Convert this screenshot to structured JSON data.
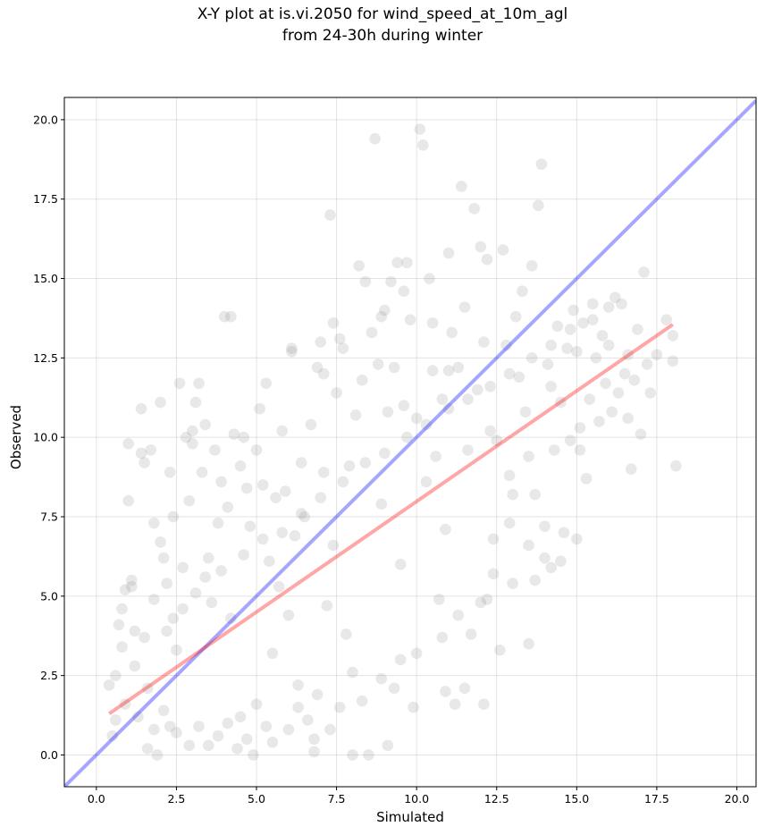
{
  "chart_data": {
    "type": "scatter",
    "title_line1": "X-Y plot at is.vi.2050 for wind_speed_at_10m_agl",
    "title_line2": "from 24-30h during winter",
    "xlabel": "Simulated",
    "ylabel": "Observed",
    "xlim": [
      -1.0,
      20.6
    ],
    "ylim": [
      -1.0,
      20.7
    ],
    "x_ticks": [
      0.0,
      2.5,
      5.0,
      7.5,
      10.0,
      12.5,
      15.0,
      17.5,
      20.0
    ],
    "y_ticks": [
      0.0,
      2.5,
      5.0,
      7.5,
      10.0,
      12.5,
      15.0,
      17.5,
      20.0
    ],
    "x_tick_labels": [
      "0.0",
      "2.5",
      "5.0",
      "7.5",
      "10.0",
      "12.5",
      "15.0",
      "17.5",
      "20.0"
    ],
    "y_tick_labels": [
      "0.0",
      "2.5",
      "5.0",
      "7.5",
      "10.0",
      "12.5",
      "15.0",
      "17.5",
      "20.0"
    ],
    "grid": true,
    "point_color": "#808080",
    "point_opacity": 0.18,
    "identity_line": {
      "color": "#0000ff",
      "from": [
        -1.0,
        -1.0
      ],
      "to": [
        20.6,
        20.6
      ]
    },
    "fit_line": {
      "color": "#ff0000",
      "from": [
        0.4,
        1.3
      ],
      "to": [
        18.0,
        13.55
      ]
    },
    "points": [
      [
        0.4,
        2.2
      ],
      [
        0.5,
        0.6
      ],
      [
        0.6,
        2.5
      ],
      [
        0.7,
        4.1
      ],
      [
        0.8,
        3.4
      ],
      [
        0.9,
        5.2
      ],
      [
        1.0,
        9.8
      ],
      [
        1.0,
        8.0
      ],
      [
        1.1,
        5.3
      ],
      [
        1.2,
        3.9
      ],
      [
        1.3,
        1.2
      ],
      [
        1.4,
        9.5
      ],
      [
        1.5,
        9.2
      ],
      [
        1.6,
        2.1
      ],
      [
        1.7,
        9.6
      ],
      [
        1.8,
        7.3
      ],
      [
        1.9,
        0.0
      ],
      [
        2.0,
        6.7
      ],
      [
        2.1,
        6.2
      ],
      [
        2.2,
        5.4
      ],
      [
        2.3,
        8.9
      ],
      [
        2.4,
        7.5
      ],
      [
        2.5,
        3.3
      ],
      [
        2.6,
        11.7
      ],
      [
        2.7,
        5.9
      ],
      [
        2.8,
        10.0
      ],
      [
        2.9,
        8.0
      ],
      [
        3.0,
        10.2
      ],
      [
        3.1,
        11.1
      ],
      [
        3.2,
        11.7
      ],
      [
        3.3,
        8.9
      ],
      [
        3.4,
        10.4
      ],
      [
        3.5,
        6.2
      ],
      [
        3.6,
        4.8
      ],
      [
        3.7,
        9.6
      ],
      [
        3.8,
        7.3
      ],
      [
        3.9,
        8.6
      ],
      [
        4.0,
        13.8
      ],
      [
        4.1,
        7.8
      ],
      [
        4.2,
        4.3
      ],
      [
        4.3,
        10.1
      ],
      [
        4.4,
        0.2
      ],
      [
        4.5,
        9.1
      ],
      [
        4.6,
        10.0
      ],
      [
        4.7,
        8.4
      ],
      [
        4.8,
        7.2
      ],
      [
        4.9,
        0.0
      ],
      [
        5.0,
        9.6
      ],
      [
        5.1,
        10.9
      ],
      [
        5.2,
        8.5
      ],
      [
        5.3,
        11.7
      ],
      [
        5.4,
        6.1
      ],
      [
        5.5,
        3.2
      ],
      [
        5.6,
        8.1
      ],
      [
        5.7,
        5.3
      ],
      [
        5.8,
        10.2
      ],
      [
        5.9,
        8.3
      ],
      [
        6.0,
        4.4
      ],
      [
        6.1,
        12.8
      ],
      [
        6.2,
        6.9
      ],
      [
        6.3,
        2.2
      ],
      [
        6.4,
        9.2
      ],
      [
        6.5,
        7.5
      ],
      [
        6.6,
        1.1
      ],
      [
        6.7,
        10.4
      ],
      [
        6.8,
        0.5
      ],
      [
        6.9,
        12.2
      ],
      [
        7.0,
        13.0
      ],
      [
        7.1,
        8.9
      ],
      [
        7.2,
        4.7
      ],
      [
        7.3,
        17.0
      ],
      [
        7.4,
        6.6
      ],
      [
        7.5,
        11.4
      ],
      [
        7.6,
        13.1
      ],
      [
        7.7,
        12.8
      ],
      [
        7.8,
        3.8
      ],
      [
        7.9,
        9.1
      ],
      [
        8.0,
        2.6
      ],
      [
        8.1,
        10.7
      ],
      [
        8.2,
        15.4
      ],
      [
        8.3,
        11.8
      ],
      [
        8.4,
        14.9
      ],
      [
        8.5,
        0.0
      ],
      [
        8.6,
        13.3
      ],
      [
        8.7,
        19.4
      ],
      [
        8.8,
        12.3
      ],
      [
        8.9,
        7.9
      ],
      [
        9.0,
        14.0
      ],
      [
        9.1,
        10.8
      ],
      [
        9.2,
        14.9
      ],
      [
        9.3,
        12.2
      ],
      [
        9.4,
        15.5
      ],
      [
        9.5,
        6.0
      ],
      [
        9.6,
        11.0
      ],
      [
        9.7,
        15.5
      ],
      [
        9.8,
        13.7
      ],
      [
        9.9,
        1.5
      ],
      [
        10.0,
        10.6
      ],
      [
        10.1,
        19.7
      ],
      [
        10.2,
        19.2
      ],
      [
        10.3,
        8.6
      ],
      [
        10.4,
        15.0
      ],
      [
        10.5,
        12.1
      ],
      [
        10.6,
        9.4
      ],
      [
        10.7,
        4.9
      ],
      [
        10.8,
        11.2
      ],
      [
        10.9,
        7.1
      ],
      [
        11.0,
        15.8
      ],
      [
        11.1,
        13.3
      ],
      [
        11.2,
        1.6
      ],
      [
        11.3,
        12.2
      ],
      [
        11.4,
        17.9
      ],
      [
        11.5,
        14.1
      ],
      [
        11.6,
        9.6
      ],
      [
        11.7,
        3.8
      ],
      [
        11.8,
        17.2
      ],
      [
        11.9,
        11.5
      ],
      [
        12.0,
        16.0
      ],
      [
        12.1,
        1.6
      ],
      [
        12.2,
        15.6
      ],
      [
        12.3,
        10.2
      ],
      [
        12.4,
        6.8
      ],
      [
        12.5,
        9.9
      ],
      [
        12.6,
        3.3
      ],
      [
        12.7,
        15.9
      ],
      [
        12.8,
        12.9
      ],
      [
        12.9,
        7.3
      ],
      [
        13.0,
        8.2
      ],
      [
        13.1,
        13.8
      ],
      [
        13.2,
        11.9
      ],
      [
        13.3,
        14.6
      ],
      [
        13.4,
        10.8
      ],
      [
        13.5,
        6.6
      ],
      [
        13.6,
        15.4
      ],
      [
        13.7,
        8.2
      ],
      [
        13.8,
        17.3
      ],
      [
        13.9,
        18.6
      ],
      [
        14.0,
        7.2
      ],
      [
        14.1,
        12.3
      ],
      [
        14.2,
        5.9
      ],
      [
        14.3,
        9.6
      ],
      [
        14.4,
        13.5
      ],
      [
        14.5,
        11.1
      ],
      [
        14.6,
        7.0
      ],
      [
        14.7,
        12.8
      ],
      [
        14.8,
        9.9
      ],
      [
        14.9,
        14.0
      ],
      [
        15.0,
        12.7
      ],
      [
        15.1,
        9.6
      ],
      [
        15.2,
        13.6
      ],
      [
        15.3,
        8.7
      ],
      [
        15.4,
        11.2
      ],
      [
        15.5,
        14.2
      ],
      [
        15.6,
        12.5
      ],
      [
        15.7,
        10.5
      ],
      [
        15.8,
        13.2
      ],
      [
        15.9,
        11.7
      ],
      [
        16.0,
        12.9
      ],
      [
        16.1,
        10.8
      ],
      [
        16.2,
        14.4
      ],
      [
        16.3,
        11.4
      ],
      [
        16.4,
        14.2
      ],
      [
        16.5,
        12.0
      ],
      [
        16.6,
        10.6
      ],
      [
        16.7,
        9.0
      ],
      [
        16.8,
        11.8
      ],
      [
        16.9,
        13.4
      ],
      [
        17.0,
        10.1
      ],
      [
        17.1,
        15.2
      ],
      [
        17.2,
        12.3
      ],
      [
        17.3,
        11.4
      ],
      [
        17.5,
        12.6
      ],
      [
        17.8,
        13.7
      ],
      [
        18.0,
        12.4
      ],
      [
        18.0,
        13.2
      ],
      [
        18.1,
        9.1
      ],
      [
        5.5,
        0.4
      ],
      [
        6.8,
        0.1
      ],
      [
        9.1,
        0.3
      ],
      [
        3.5,
        0.3
      ],
      [
        7.3,
        0.8
      ],
      [
        8.0,
        0.0
      ],
      [
        4.5,
        1.2
      ],
      [
        10.9,
        2.0
      ],
      [
        11.5,
        2.1
      ],
      [
        9.5,
        3.0
      ],
      [
        5.0,
        1.6
      ],
      [
        12.0,
        4.8
      ],
      [
        13.5,
        3.5
      ],
      [
        12.4,
        5.7
      ],
      [
        14.5,
        6.1
      ],
      [
        15.0,
        6.8
      ],
      [
        13.7,
        5.5
      ],
      [
        12.9,
        8.8
      ],
      [
        13.5,
        9.4
      ],
      [
        14.2,
        11.6
      ],
      [
        15.1,
        10.3
      ],
      [
        16.6,
        12.6
      ],
      [
        12.1,
        13.0
      ],
      [
        11.0,
        12.1
      ],
      [
        10.5,
        13.6
      ],
      [
        9.6,
        14.6
      ],
      [
        8.9,
        13.8
      ],
      [
        7.4,
        13.6
      ],
      [
        6.1,
        12.7
      ],
      [
        7.1,
        12.0
      ],
      [
        4.2,
        13.8
      ],
      [
        2.0,
        11.1
      ],
      [
        1.4,
        10.9
      ],
      [
        3.0,
        9.8
      ],
      [
        2.3,
        0.9
      ],
      [
        1.6,
        0.2
      ],
      [
        1.8,
        0.8
      ],
      [
        2.1,
        1.4
      ],
      [
        2.5,
        0.7
      ],
      [
        2.9,
        0.3
      ],
      [
        3.2,
        0.9
      ],
      [
        3.8,
        0.6
      ],
      [
        4.1,
        1.0
      ],
      [
        4.7,
        0.5
      ],
      [
        5.3,
        0.9
      ],
      [
        6.0,
        0.8
      ],
      [
        6.3,
        1.5
      ],
      [
        6.9,
        1.9
      ],
      [
        7.6,
        1.5
      ],
      [
        8.3,
        1.7
      ],
      [
        8.9,
        2.4
      ],
      [
        9.3,
        2.1
      ],
      [
        10.0,
        3.2
      ],
      [
        10.8,
        3.7
      ],
      [
        11.3,
        4.4
      ],
      [
        12.2,
        4.9
      ],
      [
        13.0,
        5.4
      ],
      [
        14.0,
        6.2
      ],
      [
        0.6,
        1.1
      ],
      [
        0.9,
        1.6
      ],
      [
        1.2,
        2.8
      ],
      [
        1.5,
        3.7
      ],
      [
        0.8,
        4.6
      ],
      [
        1.1,
        5.5
      ],
      [
        1.8,
        4.9
      ],
      [
        2.4,
        4.3
      ],
      [
        2.2,
        3.9
      ],
      [
        2.7,
        4.6
      ],
      [
        3.1,
        5.1
      ],
      [
        3.4,
        5.6
      ],
      [
        3.9,
        5.8
      ],
      [
        4.6,
        6.3
      ],
      [
        5.2,
        6.8
      ],
      [
        5.8,
        7.0
      ],
      [
        6.4,
        7.6
      ],
      [
        7.0,
        8.1
      ],
      [
        7.7,
        8.6
      ],
      [
        8.4,
        9.2
      ],
      [
        9.0,
        9.5
      ],
      [
        9.7,
        10.0
      ],
      [
        10.3,
        10.4
      ],
      [
        11.0,
        10.9
      ],
      [
        11.6,
        11.2
      ],
      [
        12.3,
        11.6
      ],
      [
        12.9,
        12.0
      ],
      [
        13.6,
        12.5
      ],
      [
        14.2,
        12.9
      ],
      [
        14.8,
        13.4
      ],
      [
        15.5,
        13.7
      ],
      [
        16.0,
        14.1
      ]
    ]
  }
}
